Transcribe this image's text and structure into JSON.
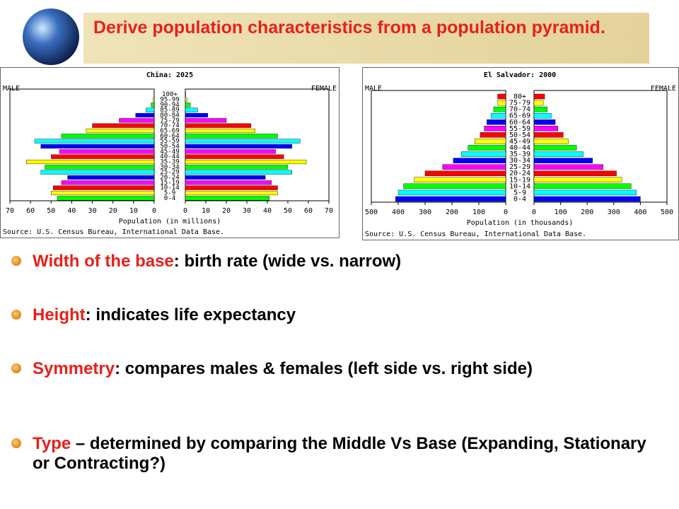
{
  "slide": {
    "title": "Derive population characteristics from a population pyramid.",
    "bullets": [
      {
        "term": "Width of the base",
        "text": ": birth rate (wide vs. narrow)"
      },
      {
        "term": "Height",
        "text": ": indicates life expectancy"
      },
      {
        "term": "Symmetry",
        "text": ": compares males & females (left side vs. right side)"
      },
      {
        "term": "Type",
        "text": " – determined by  comparing the Middle Vs Base (Expanding, Stationary or Contracting?)"
      }
    ]
  },
  "chart_data": [
    {
      "type": "bar",
      "orientation": "horizontal",
      "title": "China: 2025",
      "xlabel": "Population (in millions)",
      "source": "Source: U.S. Census Bureau, International Data Base.",
      "categories": [
        "0-4",
        "5-9",
        "10-14",
        "15-19",
        "20-24",
        "25-29",
        "30-34",
        "35-39",
        "40-44",
        "45-49",
        "50-54",
        "55-59",
        "60-64",
        "65-69",
        "70-74",
        "75-79",
        "80-84",
        "85-89",
        "90-94",
        "95-99",
        "100+"
      ],
      "colors": [
        "#00ff00",
        "#ffff00",
        "#ff0000",
        "#ff00ff",
        "#0000ff",
        "#00ffff",
        "#00ff00",
        "#ffff00",
        "#ff0000",
        "#ff00ff",
        "#0000ff",
        "#00ffff",
        "#00ff00",
        "#ffff00",
        "#ff0000",
        "#ff00ff",
        "#0000ff",
        "#00ffff",
        "#00ff00",
        "#ffff00",
        "#ff0000"
      ],
      "series": [
        {
          "name": "MALE",
          "values": [
            47,
            50,
            49,
            45,
            42,
            55,
            53,
            62,
            50,
            46,
            55,
            58,
            45,
            33,
            30,
            17,
            9,
            4,
            1.5,
            0.5,
            0.1
          ]
        },
        {
          "name": "FEMALE",
          "values": [
            41,
            45,
            45,
            42,
            39,
            52,
            50,
            59,
            48,
            44,
            52,
            56,
            45,
            34,
            32,
            20,
            11,
            6,
            2.5,
            0.8,
            0.2
          ]
        }
      ],
      "xlim": [
        0,
        70
      ],
      "xticks": [
        0,
        10,
        20,
        30,
        40,
        50,
        60,
        70
      ]
    },
    {
      "type": "bar",
      "orientation": "horizontal",
      "title": "El Salvador: 2000",
      "xlabel": "Population (in thousands)",
      "source": "Source: U.S. Census Bureau, International Data Base.",
      "categories": [
        "0-4",
        "5-9",
        "10-14",
        "15-19",
        "20-24",
        "25-29",
        "30-34",
        "35-39",
        "40-44",
        "45-49",
        "50-54",
        "55-59",
        "60-64",
        "65-69",
        "70-74",
        "75-79",
        "80+"
      ],
      "colors": [
        "#0000ff",
        "#00ffff",
        "#00ff00",
        "#ffff00",
        "#ff0000",
        "#ff00ff",
        "#0000ff",
        "#00ffff",
        "#00ff00",
        "#ffff00",
        "#ff0000",
        "#ff00ff",
        "#0000ff",
        "#00ffff",
        "#00ff00",
        "#ffff00",
        "#ff0000"
      ],
      "series": [
        {
          "name": "MALE",
          "values": [
            410,
            400,
            380,
            340,
            300,
            235,
            195,
            165,
            140,
            115,
            95,
            80,
            70,
            55,
            45,
            30,
            30
          ]
        },
        {
          "name": "FEMALE",
          "values": [
            400,
            385,
            365,
            330,
            310,
            260,
            220,
            185,
            160,
            130,
            110,
            90,
            80,
            65,
            50,
            35,
            40
          ]
        }
      ],
      "xlim": [
        0,
        500
      ],
      "xticks": [
        0,
        100,
        200,
        300,
        400,
        500
      ]
    }
  ]
}
